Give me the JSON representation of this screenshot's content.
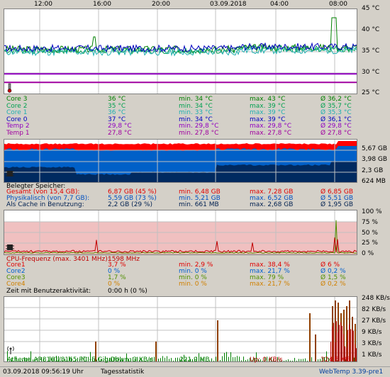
{
  "time_labels": [
    "12:00",
    "16:00",
    "20:00",
    "03.09.2018",
    "04:00",
    "08:00"
  ],
  "temp": {
    "y_labels": [
      "45 °C",
      "40 °C",
      "35 °C",
      "30 °C",
      "25 °C"
    ],
    "rows": [
      {
        "name": "Core 3",
        "cur": "36 °C",
        "min": "min. 34 °C",
        "max": "max. 43 °C",
        "avg": "Ø 36,2 °C",
        "color": "#008000"
      },
      {
        "name": "Core 2",
        "cur": "35 °C",
        "min": "min. 34 °C",
        "max": "max. 39 °C",
        "avg": "Ø 35,7 °C",
        "color": "#00a050"
      },
      {
        "name": "Core 1",
        "cur": "36 °C",
        "min": "min. 33 °C",
        "max": "max. 39 °C",
        "avg": "Ø 35,3 °C",
        "color": "#20b0b0"
      },
      {
        "name": "Core 0",
        "cur": "37 °C",
        "min": "min. 34 °C",
        "max": "max. 39 °C",
        "avg": "Ø 36,1 °C",
        "color": "#0000c0"
      },
      {
        "name": "Temp 2",
        "cur": "29,8 °C",
        "min": "min. 29,8 °C",
        "max": "max. 29,8 °C",
        "avg": "Ø 29,8 °C",
        "color": "#9000c0"
      },
      {
        "name": "Temp 1",
        "cur": "27,8 °C",
        "min": "min. 27,8 °C",
        "max": "max. 27,8 °C",
        "avg": "Ø 27,8 °C",
        "color": "#a000a0"
      }
    ]
  },
  "mem": {
    "y_labels": [
      "5,67 GB",
      "3,98 GB",
      "2,3 GB",
      "624 MB"
    ],
    "header": "Belegter Speicher:",
    "rows": [
      {
        "name": "Gesamt (von 15,4 GB):",
        "cur": "6,87 GB (45 %)",
        "min": "min. 6,48 GB",
        "max": "max. 7,28 GB",
        "avg": "Ø 6,85 GB",
        "color": "#e00000"
      },
      {
        "name": "Physikalisch (von 7,7 GB):",
        "cur": "5,59 GB (73 %)",
        "min": "min. 5,21 GB",
        "max": "max. 6,52 GB",
        "avg": "Ø 5,51 GB",
        "color": "#0050c0"
      },
      {
        "name": "Als Cache in Benutzung:",
        "cur": "2,2 GB (29 %)",
        "min": "min. 661 MB",
        "max": "max. 2,68 GB",
        "avg": "Ø 1,95 GB",
        "color": "#002050"
      }
    ]
  },
  "cpu": {
    "y_labels": [
      "100 %",
      "75 %",
      "50 %",
      "25 %",
      "0 %"
    ],
    "header_label": "CPU-Frequenz (max. 3401 MHz):",
    "header_value": "1598 MHz",
    "rows": [
      {
        "name": "Core1",
        "cur": "3,7 %",
        "min": "min. 2,9 %",
        "max": "max. 38,4 %",
        "avg": "Ø 6 %",
        "color": "#e00000"
      },
      {
        "name": "Core2",
        "cur": "0 %",
        "min": "min. 0 %",
        "max": "max. 21,7 %",
        "avg": "Ø 0,2 %",
        "color": "#0060d0"
      },
      {
        "name": "Core3",
        "cur": "1,7 %",
        "min": "min. 0 %",
        "max": "max. 79 %",
        "avg": "Ø 1,5 %",
        "color": "#509000"
      },
      {
        "name": "Core4",
        "cur": "0 %",
        "min": "min. 0 %",
        "max": "max. 21,7 %",
        "avg": "Ø 0,2 %",
        "color": "#d08000"
      }
    ],
    "activity_label": "Zeit mit Benutzeraktivität:",
    "activity_value": "0:00 h (0 %)"
  },
  "net": {
    "y_labels": [
      "248 KB/s",
      "82 KB/s",
      "27 KB/s",
      "9 KB/s",
      "3 KB/s",
      "1 KB/s"
    ],
    "adapter": "Atheros AR8161/8165 PCI-E Giga",
    "down": "Down: 3 KB/s",
    "down_total": "221,9 MB",
    "up": "Up: 0 KB/s",
    "up_total": "324,5 MB"
  },
  "status": {
    "datetime": "03.09.2018 09:56:19 Uhr",
    "stats_link": "Tagesstatistik",
    "version": "WebTemp 3.39-pre1"
  },
  "colors": {
    "mem_red": "#ff0000",
    "mem_blue": "#0060c8",
    "mem_dark": "#002a60",
    "cpu_band": "#f0c0c0",
    "net_green": "#008000",
    "net_brown": "#904000"
  }
}
